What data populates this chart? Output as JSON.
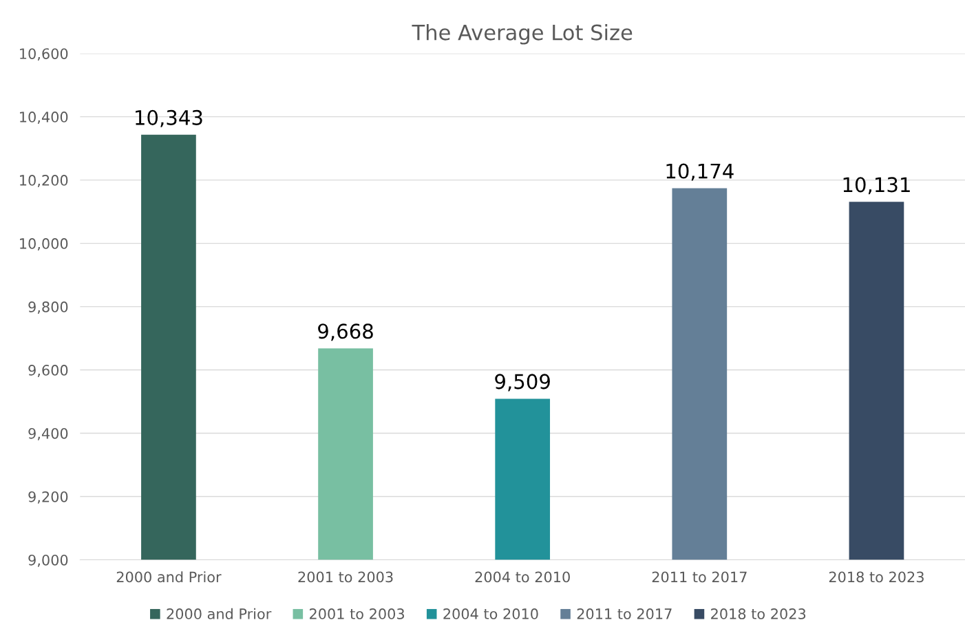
{
  "chart_data": {
    "type": "bar",
    "title": "The Average Lot Size",
    "categories": [
      "2000 and Prior",
      "2001 to 2003",
      "2004 to 2010",
      "2011 to 2017",
      "2018 to 2023"
    ],
    "series": [
      {
        "name": "2000 and Prior",
        "color": "#35665c",
        "values": [
          10343,
          null,
          null,
          null,
          null
        ],
        "value_labels": [
          "10,343",
          null,
          null,
          null,
          null
        ]
      },
      {
        "name": "2001 to 2003",
        "color": "#78bfa2",
        "values": [
          null,
          9668,
          null,
          null,
          null
        ],
        "value_labels": [
          null,
          "9,668",
          null,
          null,
          null
        ]
      },
      {
        "name": "2004 to 2010",
        "color": "#22929a",
        "values": [
          null,
          null,
          9509,
          null,
          null
        ],
        "value_labels": [
          null,
          null,
          "9,509",
          null,
          null
        ]
      },
      {
        "name": "2011 to 2017",
        "color": "#647f97",
        "values": [
          null,
          null,
          null,
          10174,
          null
        ],
        "value_labels": [
          null,
          null,
          null,
          "10,174",
          null
        ]
      },
      {
        "name": "2018 to 2023",
        "color": "#384b64",
        "values": [
          null,
          null,
          null,
          null,
          10131
        ],
        "value_labels": [
          null,
          null,
          null,
          null,
          "10,131"
        ]
      }
    ],
    "ylim": [
      9000,
      10600
    ],
    "yticks": [
      {
        "value": 9000,
        "label": "9,000"
      },
      {
        "value": 9200,
        "label": "9,200"
      },
      {
        "value": 9400,
        "label": "9,400"
      },
      {
        "value": 9600,
        "label": "9,600"
      },
      {
        "value": 9800,
        "label": "9,800"
      },
      {
        "value": 10000,
        "label": "10,000"
      },
      {
        "value": 10200,
        "label": "10,200"
      },
      {
        "value": 10400,
        "label": "10,400"
      },
      {
        "value": 10600,
        "label": "10,600"
      }
    ],
    "grid": "y",
    "legend": "bottom"
  }
}
